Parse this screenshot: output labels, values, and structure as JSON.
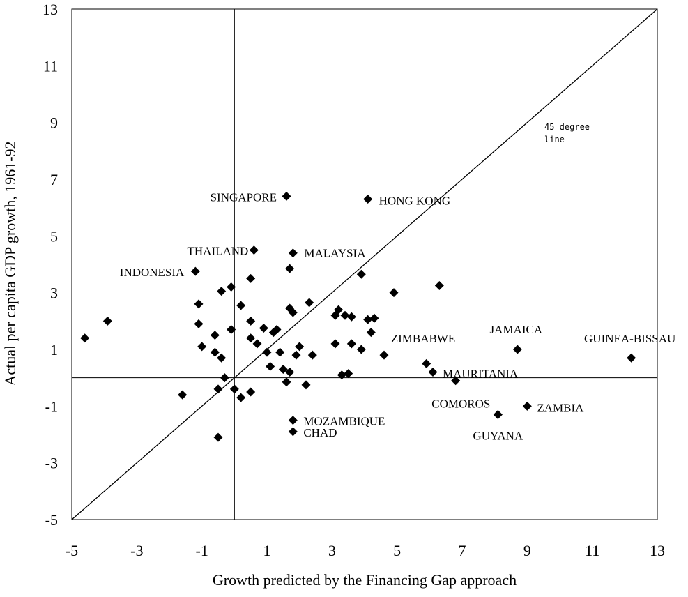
{
  "chart_data": {
    "type": "scatter",
    "title": "",
    "xlabel": "Growth predicted by the Financing Gap approach",
    "ylabel": "Actual per capita GDP growth, 1961-92",
    "xlim": [
      -5,
      13
    ],
    "ylim": [
      -5,
      13
    ],
    "x_ticks": [
      "-5",
      "-3",
      "-1",
      "1",
      "3",
      "5",
      "7",
      "9",
      "11",
      "13"
    ],
    "y_ticks": [
      "13",
      "11",
      "9",
      "7",
      "5",
      "3",
      "1",
      "-1",
      "-3",
      "-5"
    ],
    "grid": false,
    "marker": "diamond",
    "colors": {
      "marker": "#000000",
      "line": "#000000"
    },
    "reference_line": {
      "label_line1": "45 degree",
      "label_line2": "line",
      "slope": 1,
      "intercept": 0
    },
    "points": [
      {
        "x": 1.6,
        "y": 6.4,
        "label": "SINGAPORE"
      },
      {
        "x": 4.1,
        "y": 6.3,
        "label": "HONG KONG"
      },
      {
        "x": 0.6,
        "y": 4.5,
        "label": "THAILAND"
      },
      {
        "x": 1.8,
        "y": 4.4,
        "label": "MALAYSIA"
      },
      {
        "x": -1.2,
        "y": 3.75,
        "label": "INDONESIA"
      },
      {
        "x": 8.7,
        "y": 1.0,
        "label": "JAMAICA"
      },
      {
        "x": 12.2,
        "y": 0.7,
        "label": "GUINEA-BISSAU"
      },
      {
        "x": 4.6,
        "y": 0.8,
        "label": "ZIMBABWE"
      },
      {
        "x": 6.1,
        "y": 0.2,
        "label": "MAURITANIA"
      },
      {
        "x": 8.1,
        "y": -1.3,
        "label": "COMOROS"
      },
      {
        "x": 9.0,
        "y": -1.0,
        "label": "ZAMBIA"
      },
      {
        "x": 1.8,
        "y": -1.5,
        "label": "MOZAMBIQUE"
      },
      {
        "x": 1.8,
        "y": -1.9,
        "label": "CHAD"
      },
      {
        "x": 8.1,
        "y": -1.3,
        "label": "GUYANA"
      },
      {
        "x": -4.6,
        "y": 1.4
      },
      {
        "x": -3.9,
        "y": 2.0
      },
      {
        "x": -1.6,
        "y": -0.6
      },
      {
        "x": -1.1,
        "y": 2.6
      },
      {
        "x": -1.1,
        "y": 1.9
      },
      {
        "x": -1.0,
        "y": 1.1
      },
      {
        "x": -0.6,
        "y": 1.5
      },
      {
        "x": -0.6,
        "y": 0.9
      },
      {
        "x": -0.5,
        "y": -0.4
      },
      {
        "x": -0.5,
        "y": -2.1
      },
      {
        "x": -0.4,
        "y": 3.05
      },
      {
        "x": -0.4,
        "y": 0.7
      },
      {
        "x": -0.3,
        "y": 0.0
      },
      {
        "x": -0.1,
        "y": 1.7
      },
      {
        "x": -0.1,
        "y": 3.2
      },
      {
        "x": 0.0,
        "y": -0.4
      },
      {
        "x": 0.2,
        "y": -0.7
      },
      {
        "x": 0.2,
        "y": 2.55
      },
      {
        "x": 0.5,
        "y": 3.5
      },
      {
        "x": 0.5,
        "y": 2.0
      },
      {
        "x": 0.5,
        "y": 1.4
      },
      {
        "x": 0.5,
        "y": -0.5
      },
      {
        "x": 0.7,
        "y": 1.2
      },
      {
        "x": 0.9,
        "y": 1.75
      },
      {
        "x": 1.0,
        "y": 0.9
      },
      {
        "x": 1.1,
        "y": 0.4
      },
      {
        "x": 1.2,
        "y": 1.6
      },
      {
        "x": 1.3,
        "y": 1.7
      },
      {
        "x": 1.4,
        "y": 0.9
      },
      {
        "x": 1.5,
        "y": 0.3
      },
      {
        "x": 1.6,
        "y": -0.15
      },
      {
        "x": 1.7,
        "y": 0.2
      },
      {
        "x": 1.7,
        "y": 3.85
      },
      {
        "x": 1.7,
        "y": 2.45
      },
      {
        "x": 1.8,
        "y": 2.3
      },
      {
        "x": 1.9,
        "y": 0.8
      },
      {
        "x": 2.0,
        "y": 1.1
      },
      {
        "x": 2.2,
        "y": -0.25
      },
      {
        "x": 2.3,
        "y": 2.65
      },
      {
        "x": 2.4,
        "y": 0.8
      },
      {
        "x": 3.1,
        "y": 2.2
      },
      {
        "x": 3.1,
        "y": 1.2
      },
      {
        "x": 3.2,
        "y": 2.4
      },
      {
        "x": 3.3,
        "y": 0.1
      },
      {
        "x": 3.4,
        "y": 2.2
      },
      {
        "x": 3.5,
        "y": 0.15
      },
      {
        "x": 3.6,
        "y": 2.15
      },
      {
        "x": 3.6,
        "y": 1.2
      },
      {
        "x": 3.9,
        "y": 1.0
      },
      {
        "x": 3.9,
        "y": 3.65
      },
      {
        "x": 4.1,
        "y": 2.05
      },
      {
        "x": 4.2,
        "y": 1.6
      },
      {
        "x": 4.3,
        "y": 2.1
      },
      {
        "x": 4.9,
        "y": 3.0
      },
      {
        "x": 5.9,
        "y": 0.5
      },
      {
        "x": 6.3,
        "y": 3.25
      },
      {
        "x": 6.8,
        "y": -0.1
      }
    ]
  }
}
